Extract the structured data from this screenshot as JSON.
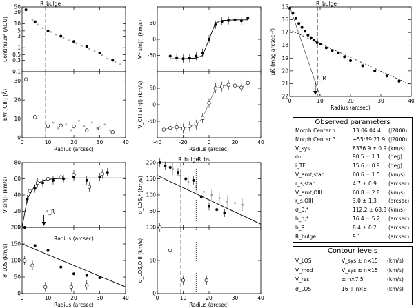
{
  "chart_data": [
    {
      "id": "continuum",
      "type": "scatter",
      "ylabel": "Continuum (ADU)",
      "xlabel": "",
      "xlim": [
        0,
        40
      ],
      "ylim": [
        0.1,
        50
      ],
      "yscale": "log",
      "xticks": [
        0,
        10,
        20,
        30,
        40
      ],
      "yticks": [
        0.1,
        0.3,
        0.5,
        1,
        3,
        5,
        10,
        30,
        50
      ],
      "ytick_labels": [
        "0.1",
        "0.3",
        "0.5",
        "1",
        "3",
        "5",
        "10",
        "30",
        "50"
      ],
      "annotation": "R_bulge",
      "vline": 9.1,
      "series": [
        {
          "name": "filled",
          "x": [
            1.5,
            5,
            10,
            15,
            20,
            25,
            30,
            35
          ],
          "y": [
            38,
            12,
            5,
            3,
            1.8,
            1.1,
            0.6,
            0.3
          ]
        },
        {
          "name": "grey",
          "x": [
            4,
            6,
            8,
            11,
            13,
            16,
            18,
            21,
            23,
            26,
            28,
            31,
            33,
            36,
            38
          ],
          "y": [
            14,
            9,
            6.5,
            4.5,
            3.5,
            2.5,
            2,
            1.5,
            1.2,
            0.9,
            0.7,
            0.5,
            0.35,
            0.25,
            0.2
          ]
        }
      ]
    },
    {
      "id": "ew_oiii",
      "type": "scatter",
      "ylabel": "EW [OIII] (Å)",
      "xlabel": "Radius (arcsec)",
      "xlim": [
        0,
        40
      ],
      "ylim": [
        0,
        35
      ],
      "xticks": [
        0,
        10,
        20,
        30,
        40
      ],
      "yticks": [
        0,
        10,
        20,
        30
      ],
      "vline": 9.1,
      "series": [
        {
          "name": "open",
          "x": [
            1.5,
            5,
            10,
            15,
            20,
            25,
            30,
            35
          ],
          "y": [
            31,
            11,
            6,
            6.5,
            6,
            4,
            5,
            3
          ]
        },
        {
          "name": "grey",
          "x": [
            12,
            14,
            17,
            19,
            22,
            24,
            27,
            29,
            32,
            34
          ],
          "y": [
            8,
            5,
            7,
            4,
            9,
            6,
            8,
            5,
            7,
            4
          ]
        }
      ]
    },
    {
      "id": "v_stars",
      "type": "line",
      "ylabel": "V* sin(i) (km/s)",
      "xlabel": "",
      "xlim": [
        -40,
        40
      ],
      "ylim": [
        -100,
        100
      ],
      "xticks": [
        -40,
        -20,
        0,
        20,
        40
      ],
      "yticks": [
        -50,
        0,
        50
      ],
      "series": [
        {
          "name": "data",
          "x": [
            -30,
            -25,
            -20,
            -15,
            -10,
            -5,
            0,
            5,
            10,
            15,
            20,
            25,
            30
          ],
          "y": [
            -52,
            -57,
            -60,
            -58,
            -52,
            -42,
            0,
            45,
            55,
            58,
            60,
            57,
            65
          ]
        },
        {
          "name": "model",
          "x": [
            -30,
            -20,
            -10,
            -5,
            0,
            5,
            10,
            20,
            30
          ],
          "y": [
            -60,
            -60,
            -58,
            -50,
            0,
            50,
            58,
            60,
            60
          ]
        }
      ]
    },
    {
      "id": "v_gas",
      "type": "scatter",
      "ylabel": "V_OIII sin(i) (km/s)",
      "xlabel": "Radius (arcsec)",
      "xlim": [
        -40,
        40
      ],
      "ylim": [
        -100,
        100
      ],
      "xticks": [
        -40,
        -20,
        0,
        20,
        40
      ],
      "yticks": [
        -50,
        0,
        50
      ],
      "series": [
        {
          "name": "data",
          "x": [
            -35,
            -30,
            -25,
            -20,
            -15,
            -10,
            -5,
            0,
            5,
            10,
            15,
            20,
            25,
            30
          ],
          "y": [
            -75,
            -70,
            -68,
            -72,
            -65,
            -60,
            -40,
            5,
            50,
            55,
            60,
            58,
            52,
            66
          ]
        }
      ]
    },
    {
      "id": "surface_brightness",
      "type": "line",
      "ylabel": "μK (mag arcsec⁻²)",
      "xlabel": "Radius (arcsec)",
      "xlim": [
        0,
        40
      ],
      "ylim": [
        22,
        15
      ],
      "xticks": [
        0,
        10,
        20,
        30,
        40
      ],
      "yticks": [
        15,
        16,
        17,
        18,
        19,
        20,
        21,
        22
      ],
      "yticks_reversed": true,
      "annotation": "R_bulge",
      "vline": 9.1,
      "arrow_label": "h_R",
      "series": [
        {
          "name": "data",
          "x": [
            0,
            1,
            2,
            3,
            4,
            5,
            6,
            7,
            8,
            9,
            10,
            12,
            14,
            16,
            18,
            20,
            24,
            28,
            32,
            36
          ],
          "y": [
            15.1,
            15.5,
            15.9,
            16.3,
            16.6,
            16.9,
            17.2,
            17.4,
            17.6,
            17.8,
            17.9,
            18.2,
            18.4,
            18.6,
            18.9,
            19.2,
            19.6,
            20.0,
            20.4,
            20.8
          ]
        },
        {
          "name": "disk_fit",
          "x": [
            0,
            40
          ],
          "y": [
            16.8,
            21.1
          ]
        },
        {
          "name": "bulge_fit",
          "x": [
            0,
            10
          ],
          "y": [
            15.0,
            22.0
          ]
        }
      ]
    },
    {
      "id": "v_circ",
      "type": "line",
      "ylabel": "V sin(i) (km/s)",
      "xlabel": "Radius (arcsec)",
      "xlim": [
        0,
        40
      ],
      "ylim": [
        0,
        80
      ],
      "xticks": [
        0,
        10,
        20,
        30,
        40
      ],
      "yticks": [
        0,
        20,
        40,
        60,
        80
      ],
      "arrow_label": "h_R",
      "series": [
        {
          "name": "stars",
          "x": [
            2,
            5,
            8,
            12,
            16,
            20,
            25,
            30,
            33
          ],
          "y": [
            35,
            48,
            55,
            58,
            60,
            62,
            58,
            62,
            68
          ]
        },
        {
          "name": "gas",
          "x": [
            3,
            6,
            10,
            15,
            20,
            26,
            31
          ],
          "y": [
            45,
            55,
            60,
            62,
            65,
            50,
            66
          ]
        },
        {
          "name": "model",
          "x": [
            0,
            2,
            5,
            8,
            12,
            20,
            30,
            40
          ],
          "y": [
            0,
            35,
            52,
            58,
            60,
            61,
            61,
            61
          ]
        }
      ]
    },
    {
      "id": "sigma_los",
      "type": "scatter",
      "ylabel": "σ_LOS (km/s)",
      "xlabel": "Radius (arcsec)",
      "xlim": [
        0,
        40
      ],
      "ylim": [
        0,
        200
      ],
      "xticks": [
        0,
        10,
        20,
        30,
        40
      ],
      "yticks": [
        0,
        50,
        100,
        150,
        200
      ],
      "series": [
        {
          "name": "stars",
          "x": [
            1,
            5,
            10,
            15,
            20,
            25,
            30
          ],
          "y": [
            200,
            145,
            130,
            80,
            60,
            55,
            48
          ]
        },
        {
          "name": "gas",
          "x": [
            1,
            4,
            9,
            19,
            25
          ],
          "y": [
            100,
            85,
            20,
            20,
            25
          ]
        },
        {
          "name": "fit",
          "x": [
            0,
            40
          ],
          "y": [
            150,
            20
          ]
        }
      ]
    },
    {
      "id": "sigma_los_star",
      "type": "scatter",
      "ylabel": "σ_LOS,* (km/s)",
      "xlabel": "",
      "xlim": [
        0,
        40
      ],
      "ylim": [
        0,
        200
      ],
      "xticks": [
        0,
        10,
        20,
        30,
        40
      ],
      "yticks": [
        0,
        50,
        100,
        150,
        200
      ],
      "annotations": [
        "R_bulge",
        "R_bs"
      ],
      "vlines": [
        9.1,
        15
      ],
      "series": [
        {
          "name": "data",
          "x": [
            1,
            3,
            5,
            8,
            11,
            14,
            17,
            20,
            23,
            26
          ],
          "y": [
            200,
            190,
            185,
            170,
            150,
            145,
            95,
            65,
            55,
            45
          ]
        },
        {
          "name": "grey",
          "x": [
            6,
            9,
            12,
            15,
            18,
            21,
            24,
            27,
            30,
            33
          ],
          "y": [
            180,
            160,
            140,
            125,
            110,
            100,
            90,
            80,
            75,
            70
          ]
        },
        {
          "name": "fit",
          "x": [
            0,
            40
          ],
          "y": [
            160,
            10
          ]
        }
      ]
    },
    {
      "id": "sigma_los_oiii",
      "type": "scatter",
      "ylabel": "σ_LOS,OIII (km/s)",
      "xlabel": "Radius (arcsec)",
      "xlim": [
        0,
        40
      ],
      "ylim": [
        0,
        100
      ],
      "xticks": [
        0,
        10,
        20,
        30,
        40
      ],
      "yticks": [
        0,
        50,
        100
      ],
      "vlines": [
        9.1,
        15
      ],
      "series": [
        {
          "name": "data",
          "x": [
            1,
            5,
            10,
            19
          ],
          "y": [
            100,
            65,
            20,
            20
          ]
        }
      ]
    }
  ],
  "observed": {
    "title": "Observed parameters",
    "rows": [
      {
        "label": "Morph.Center α",
        "value": "13:06:04.4",
        "unit": "(J2000)"
      },
      {
        "label": "Morph.Center δ",
        "value": "+55:39:21.9",
        "unit": "(J2000)"
      },
      {
        "label": "V_sys",
        "value": "8336.9 ± 0.9",
        "unit": "(km/s)"
      },
      {
        "label": "φ₀",
        "value": "90.5 ± 1.1",
        "unit": "(deg)"
      },
      {
        "label": "i_TF",
        "value": "15.6 ± 0.9",
        "unit": "(deg)"
      },
      {
        "label": "V_arot,star",
        "value": "60.6 ± 1.5",
        "unit": "(km/s)"
      },
      {
        "label": "r_s,star",
        "value": "4.7 ± 0.9",
        "unit": "(arcsec)"
      },
      {
        "label": "V_arot,OIII",
        "value": "60.8 ± 2.8",
        "unit": "(km/s)"
      },
      {
        "label": "r_s,OIII",
        "value": "3.0 ± 1.3",
        "unit": "(arcsec)"
      },
      {
        "label": "σ_0,*",
        "value": "112.2 ± 68.3",
        "unit": "(km/s)"
      },
      {
        "label": "h_σ,*",
        "value": "16.4 ± 5.2",
        "unit": "(arcsec)"
      },
      {
        "label": "h_R",
        "value": "8.4 ± 0.2",
        "unit": "(arcsec)"
      },
      {
        "label": "R_bulge",
        "value": "9.1",
        "unit": "(arcsec)"
      }
    ]
  },
  "contour": {
    "title": "Contour levels",
    "rows": [
      {
        "label": "V_LOS",
        "value": "V_sys ± n×15",
        "unit": "(km/s)"
      },
      {
        "label": "V_mod",
        "value": "V_sys ± n×15",
        "unit": "(km/s)"
      },
      {
        "label": "V_res",
        "value": "± n×7.5",
        "unit": "(km/s)"
      },
      {
        "label": "σ_LOS",
        "value": "16 + n×6",
        "unit": "(km/s)"
      }
    ]
  }
}
